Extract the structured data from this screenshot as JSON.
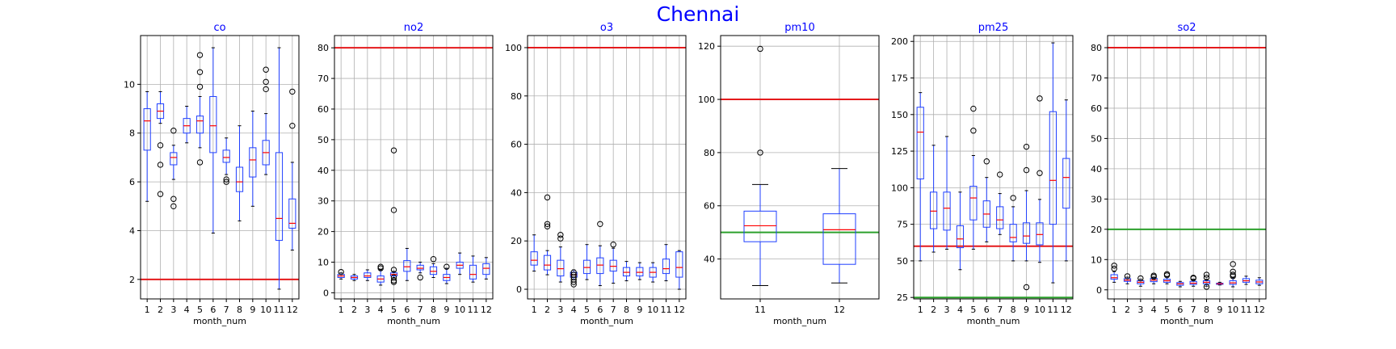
{
  "figure": {
    "title": "Chennai",
    "title_color": "#0000ff"
  },
  "colors": {
    "box": "#1f3fff",
    "median": "#ff0000",
    "threshold_red": "#e41a1c",
    "threshold_green": "#2ca02c",
    "title": "#0000ff"
  },
  "chart_data": [
    {
      "type": "box",
      "title": "co",
      "xlabel": "month_num",
      "grid": true,
      "ylim": [
        1.2,
        12
      ],
      "yticks": [
        2,
        4,
        6,
        8,
        10
      ],
      "categories": [
        "1",
        "2",
        "3",
        "4",
        "5",
        "6",
        "7",
        "8",
        "9",
        "10",
        "11",
        "12"
      ],
      "hlines": [
        {
          "y": 2,
          "color": "red"
        }
      ],
      "boxes": [
        {
          "whislo": 5.2,
          "q1": 7.3,
          "med": 8.5,
          "q3": 9.0,
          "whishi": 9.7,
          "fliers": []
        },
        {
          "whislo": 8.4,
          "q1": 8.6,
          "med": 8.9,
          "q3": 9.2,
          "whishi": 9.7,
          "fliers": [
            7.5,
            6.7,
            5.5
          ]
        },
        {
          "whislo": 6.1,
          "q1": 6.7,
          "med": 7.0,
          "q3": 7.2,
          "whishi": 7.5,
          "fliers": [
            8.1,
            5.3,
            5.0
          ]
        },
        {
          "whislo": 7.6,
          "q1": 8.0,
          "med": 8.3,
          "q3": 8.6,
          "whishi": 9.1,
          "fliers": []
        },
        {
          "whislo": 7.4,
          "q1": 8.0,
          "med": 8.5,
          "q3": 8.7,
          "whishi": 9.5,
          "fliers": [
            11.2,
            10.5,
            9.9,
            6.8
          ]
        },
        {
          "whislo": 3.9,
          "q1": 7.2,
          "med": 8.3,
          "q3": 9.5,
          "whishi": 11.5,
          "fliers": []
        },
        {
          "whislo": 6.3,
          "q1": 6.8,
          "med": 7.0,
          "q3": 7.3,
          "whishi": 7.8,
          "fliers": [
            6.1,
            6.0
          ]
        },
        {
          "whislo": 4.4,
          "q1": 5.6,
          "med": 6.0,
          "q3": 6.6,
          "whishi": 8.3,
          "fliers": []
        },
        {
          "whislo": 5.0,
          "q1": 6.2,
          "med": 6.9,
          "q3": 7.4,
          "whishi": 8.9,
          "fliers": []
        },
        {
          "whislo": 6.3,
          "q1": 6.7,
          "med": 7.2,
          "q3": 7.7,
          "whishi": 8.8,
          "fliers": [
            10.6,
            10.1,
            9.8
          ]
        },
        {
          "whislo": 1.6,
          "q1": 3.6,
          "med": 4.5,
          "q3": 7.2,
          "whishi": 11.5,
          "fliers": []
        },
        {
          "whislo": 3.2,
          "q1": 4.1,
          "med": 4.3,
          "q3": 5.3,
          "whishi": 6.8,
          "fliers": [
            9.7,
            8.3
          ]
        }
      ]
    },
    {
      "type": "box",
      "title": "no2",
      "xlabel": "month_num",
      "grid": true,
      "ylim": [
        -2,
        84
      ],
      "yticks": [
        0,
        10,
        20,
        30,
        40,
        50,
        60,
        70,
        80
      ],
      "categories": [
        "1",
        "2",
        "3",
        "4",
        "5",
        "6",
        "7",
        "8",
        "9",
        "10",
        "11",
        "12"
      ],
      "hlines": [
        {
          "y": 80,
          "color": "red"
        }
      ],
      "boxes": [
        {
          "whislo": 4.5,
          "q1": 5.0,
          "med": 5.5,
          "q3": 6.0,
          "whishi": 6.5,
          "fliers": [
            6.8
          ]
        },
        {
          "whislo": 4.0,
          "q1": 4.5,
          "med": 5.0,
          "q3": 5.5,
          "whishi": 6.0,
          "fliers": []
        },
        {
          "whislo": 4.0,
          "q1": 5.0,
          "med": 5.5,
          "q3": 6.5,
          "whishi": 7.5,
          "fliers": []
        },
        {
          "whislo": 2.5,
          "q1": 3.5,
          "med": 4.5,
          "q3": 5.5,
          "whishi": 7.5,
          "fliers": [
            8.0,
            8.5
          ]
        },
        {
          "whislo": 5.0,
          "q1": 5.5,
          "med": 6.0,
          "q3": 6.5,
          "whishi": 7.0,
          "fliers": [
            46.5,
            27.0,
            7.5,
            5.0,
            4.0,
            3.5
          ]
        },
        {
          "whislo": 4.0,
          "q1": 7.0,
          "med": 8.5,
          "q3": 10.5,
          "whishi": 14.5,
          "fliers": []
        },
        {
          "whislo": 6.5,
          "q1": 7.5,
          "med": 8.0,
          "q3": 9.0,
          "whishi": 10.0,
          "fliers": [
            5.0
          ]
        },
        {
          "whislo": 5.0,
          "q1": 6.0,
          "med": 7.0,
          "q3": 8.5,
          "whishi": 9.5,
          "fliers": [
            11.0
          ]
        },
        {
          "whislo": 3.0,
          "q1": 4.0,
          "med": 5.0,
          "q3": 6.0,
          "whishi": 8.0,
          "fliers": [
            8.5
          ]
        },
        {
          "whislo": 6.0,
          "q1": 8.0,
          "med": 9.0,
          "q3": 10.0,
          "whishi": 13.0,
          "fliers": []
        },
        {
          "whislo": 3.5,
          "q1": 4.5,
          "med": 6.0,
          "q3": 9.0,
          "whishi": 12.0,
          "fliers": []
        },
        {
          "whislo": 4.5,
          "q1": 6.0,
          "med": 8.0,
          "q3": 9.5,
          "whishi": 11.5,
          "fliers": []
        }
      ]
    },
    {
      "type": "box",
      "title": "o3",
      "xlabel": "month_num",
      "grid": true,
      "ylim": [
        -4,
        105
      ],
      "yticks": [
        0,
        20,
        40,
        60,
        80,
        100
      ],
      "categories": [
        "1",
        "2",
        "3",
        "4",
        "5",
        "6",
        "7",
        "8",
        "9",
        "10",
        "11",
        "12"
      ],
      "hlines": [
        {
          "y": 100,
          "color": "red"
        }
      ],
      "boxes": [
        {
          "whislo": 7.5,
          "q1": 10.0,
          "med": 12.0,
          "q3": 15.5,
          "whishi": 22.5,
          "fliers": []
        },
        {
          "whislo": 6.0,
          "q1": 8.0,
          "med": 10.0,
          "q3": 14.0,
          "whishi": 16.0,
          "fliers": [
            38.0,
            27.0,
            26.0
          ]
        },
        {
          "whislo": 3.0,
          "q1": 5.5,
          "med": 8.5,
          "q3": 12.0,
          "whishi": 17.5,
          "fliers": [
            22.5,
            21.0
          ]
        },
        {
          "whislo": 4.0,
          "q1": 5.0,
          "med": 6.0,
          "q3": 7.0,
          "whishi": 8.0,
          "fliers": [
            7.0,
            6.0,
            5.0,
            4.0,
            3.0,
            2.0
          ]
        },
        {
          "whislo": 4.0,
          "q1": 6.5,
          "med": 9.0,
          "q3": 12.0,
          "whishi": 18.5,
          "fliers": []
        },
        {
          "whislo": 1.5,
          "q1": 6.5,
          "med": 10.0,
          "q3": 13.0,
          "whishi": 18.0,
          "fliers": [
            27.0
          ]
        },
        {
          "whislo": 2.5,
          "q1": 7.5,
          "med": 9.5,
          "q3": 12.0,
          "whishi": 17.0,
          "fliers": [
            18.5
          ]
        },
        {
          "whislo": 3.5,
          "q1": 5.5,
          "med": 7.0,
          "q3": 9.0,
          "whishi": 11.5,
          "fliers": []
        },
        {
          "whislo": 4.0,
          "q1": 5.5,
          "med": 7.0,
          "q3": 9.0,
          "whishi": 11.0,
          "fliers": []
        },
        {
          "whislo": 3.0,
          "q1": 5.0,
          "med": 7.0,
          "q3": 9.0,
          "whishi": 11.0,
          "fliers": []
        },
        {
          "whislo": 3.5,
          "q1": 6.5,
          "med": 8.5,
          "q3": 12.5,
          "whishi": 18.5,
          "fliers": []
        },
        {
          "whislo": 0.0,
          "q1": 5.0,
          "med": 9.0,
          "q3": 15.5,
          "whishi": 16.0,
          "fliers": []
        }
      ]
    },
    {
      "type": "box",
      "title": "pm10",
      "xlabel": "month_num",
      "grid": true,
      "ylim": [
        25,
        124
      ],
      "yticks": [
        40,
        60,
        80,
        100,
        120
      ],
      "categories": [
        "11",
        "12"
      ],
      "hlines": [
        {
          "y": 100,
          "color": "red"
        },
        {
          "y": 50,
          "color": "green"
        }
      ],
      "boxes": [
        {
          "whislo": 30.0,
          "q1": 46.5,
          "med": 52.5,
          "q3": 58.0,
          "whishi": 68.0,
          "fliers": [
            119.0,
            80.0
          ]
        },
        {
          "whislo": 31.0,
          "q1": 38.0,
          "med": 51.0,
          "q3": 57.0,
          "whishi": 74.0,
          "fliers": []
        }
      ]
    },
    {
      "type": "box",
      "title": "pm25",
      "xlabel": "month_num",
      "grid": true,
      "ylim": [
        24,
        204
      ],
      "yticks": [
        25,
        50,
        75,
        100,
        125,
        150,
        175,
        200
      ],
      "categories": [
        "1",
        "2",
        "3",
        "4",
        "5",
        "6",
        "7",
        "8",
        "9",
        "10",
        "11",
        "12"
      ],
      "hlines": [
        {
          "y": 60,
          "color": "red"
        },
        {
          "y": 25,
          "color": "green"
        }
      ],
      "boxes": [
        {
          "whislo": 50.0,
          "q1": 106.0,
          "med": 138.0,
          "q3": 155.0,
          "whishi": 165.0,
          "fliers": []
        },
        {
          "whislo": 56.0,
          "q1": 72.0,
          "med": 84.0,
          "q3": 97.0,
          "whishi": 129.0,
          "fliers": []
        },
        {
          "whislo": 58.0,
          "q1": 71.0,
          "med": 86.0,
          "q3": 97.0,
          "whishi": 135.0,
          "fliers": []
        },
        {
          "whislo": 44.0,
          "q1": 59.0,
          "med": 65.0,
          "q3": 74.0,
          "whishi": 97.0,
          "fliers": []
        },
        {
          "whislo": 58.0,
          "q1": 78.0,
          "med": 93.0,
          "q3": 101.0,
          "whishi": 122.0,
          "fliers": [
            154.0,
            139.0
          ]
        },
        {
          "whislo": 63.0,
          "q1": 73.0,
          "med": 82.0,
          "q3": 91.0,
          "whishi": 107.0,
          "fliers": [
            118.0
          ]
        },
        {
          "whislo": 68.0,
          "q1": 72.0,
          "med": 78.0,
          "q3": 87.0,
          "whishi": 96.0,
          "fliers": [
            109.0
          ]
        },
        {
          "whislo": 50.0,
          "q1": 63.0,
          "med": 66.0,
          "q3": 75.0,
          "whishi": 87.0,
          "fliers": [
            93.0
          ]
        },
        {
          "whislo": 50.0,
          "q1": 62.0,
          "med": 67.0,
          "q3": 76.0,
          "whishi": 98.0,
          "fliers": [
            128.0,
            112.0,
            32.0
          ]
        },
        {
          "whislo": 49.0,
          "q1": 61.0,
          "med": 68.0,
          "q3": 76.0,
          "whishi": 92.0,
          "fliers": [
            161.0,
            110.0
          ]
        },
        {
          "whislo": 35.0,
          "q1": 75.0,
          "med": 105.0,
          "q3": 152.0,
          "whishi": 199.0,
          "fliers": []
        },
        {
          "whislo": 50.0,
          "q1": 86.0,
          "med": 107.0,
          "q3": 120.0,
          "whishi": 160.0,
          "fliers": []
        }
      ]
    },
    {
      "type": "box",
      "title": "so2",
      "xlabel": "month_num",
      "grid": true,
      "ylim": [
        -3,
        84
      ],
      "yticks": [
        0,
        10,
        20,
        30,
        40,
        50,
        60,
        70,
        80
      ],
      "categories": [
        "1",
        "2",
        "3",
        "4",
        "5",
        "6",
        "7",
        "8",
        "9",
        "10",
        "11",
        "12"
      ],
      "hlines": [
        {
          "y": 80,
          "color": "red"
        },
        {
          "y": 20,
          "color": "green"
        }
      ],
      "boxes": [
        {
          "whislo": 2.5,
          "q1": 3.5,
          "med": 4.0,
          "q3": 5.0,
          "whishi": 6.0,
          "fliers": [
            8.0,
            7.0
          ]
        },
        {
          "whislo": 2.0,
          "q1": 2.8,
          "med": 3.2,
          "q3": 3.7,
          "whishi": 4.2,
          "fliers": [
            4.5
          ]
        },
        {
          "whislo": 1.2,
          "q1": 2.0,
          "med": 2.5,
          "q3": 3.0,
          "whishi": 3.5,
          "fliers": [
            3.8
          ]
        },
        {
          "whislo": 2.0,
          "q1": 2.7,
          "med": 3.2,
          "q3": 3.8,
          "whishi": 4.2,
          "fliers": [
            4.7,
            4.3
          ]
        },
        {
          "whislo": 2.0,
          "q1": 2.5,
          "med": 3.0,
          "q3": 3.5,
          "whishi": 4.3,
          "fliers": [
            5.2,
            4.8
          ]
        },
        {
          "whislo": 1.0,
          "q1": 1.5,
          "med": 2.0,
          "q3": 2.4,
          "whishi": 2.8,
          "fliers": []
        },
        {
          "whislo": 1.2,
          "q1": 1.8,
          "med": 2.2,
          "q3": 2.8,
          "whishi": 3.5,
          "fliers": [
            4.0,
            3.8
          ]
        },
        {
          "whislo": 1.2,
          "q1": 2.0,
          "med": 2.5,
          "q3": 3.0,
          "whishi": 3.5,
          "fliers": [
            5.0,
            4.0,
            1.0
          ]
        },
        {
          "whislo": 1.6,
          "q1": 1.8,
          "med": 2.0,
          "q3": 2.2,
          "whishi": 2.5,
          "fliers": []
        },
        {
          "whislo": 1.0,
          "q1": 1.8,
          "med": 2.3,
          "q3": 3.0,
          "whishi": 4.0,
          "fliers": [
            8.5,
            6.0,
            5.0,
            4.5
          ]
        },
        {
          "whislo": 1.8,
          "q1": 2.5,
          "med": 3.0,
          "q3": 3.7,
          "whishi": 4.5,
          "fliers": []
        },
        {
          "whislo": 1.5,
          "q1": 2.0,
          "med": 2.6,
          "q3": 3.2,
          "whishi": 4.0,
          "fliers": []
        }
      ]
    }
  ]
}
